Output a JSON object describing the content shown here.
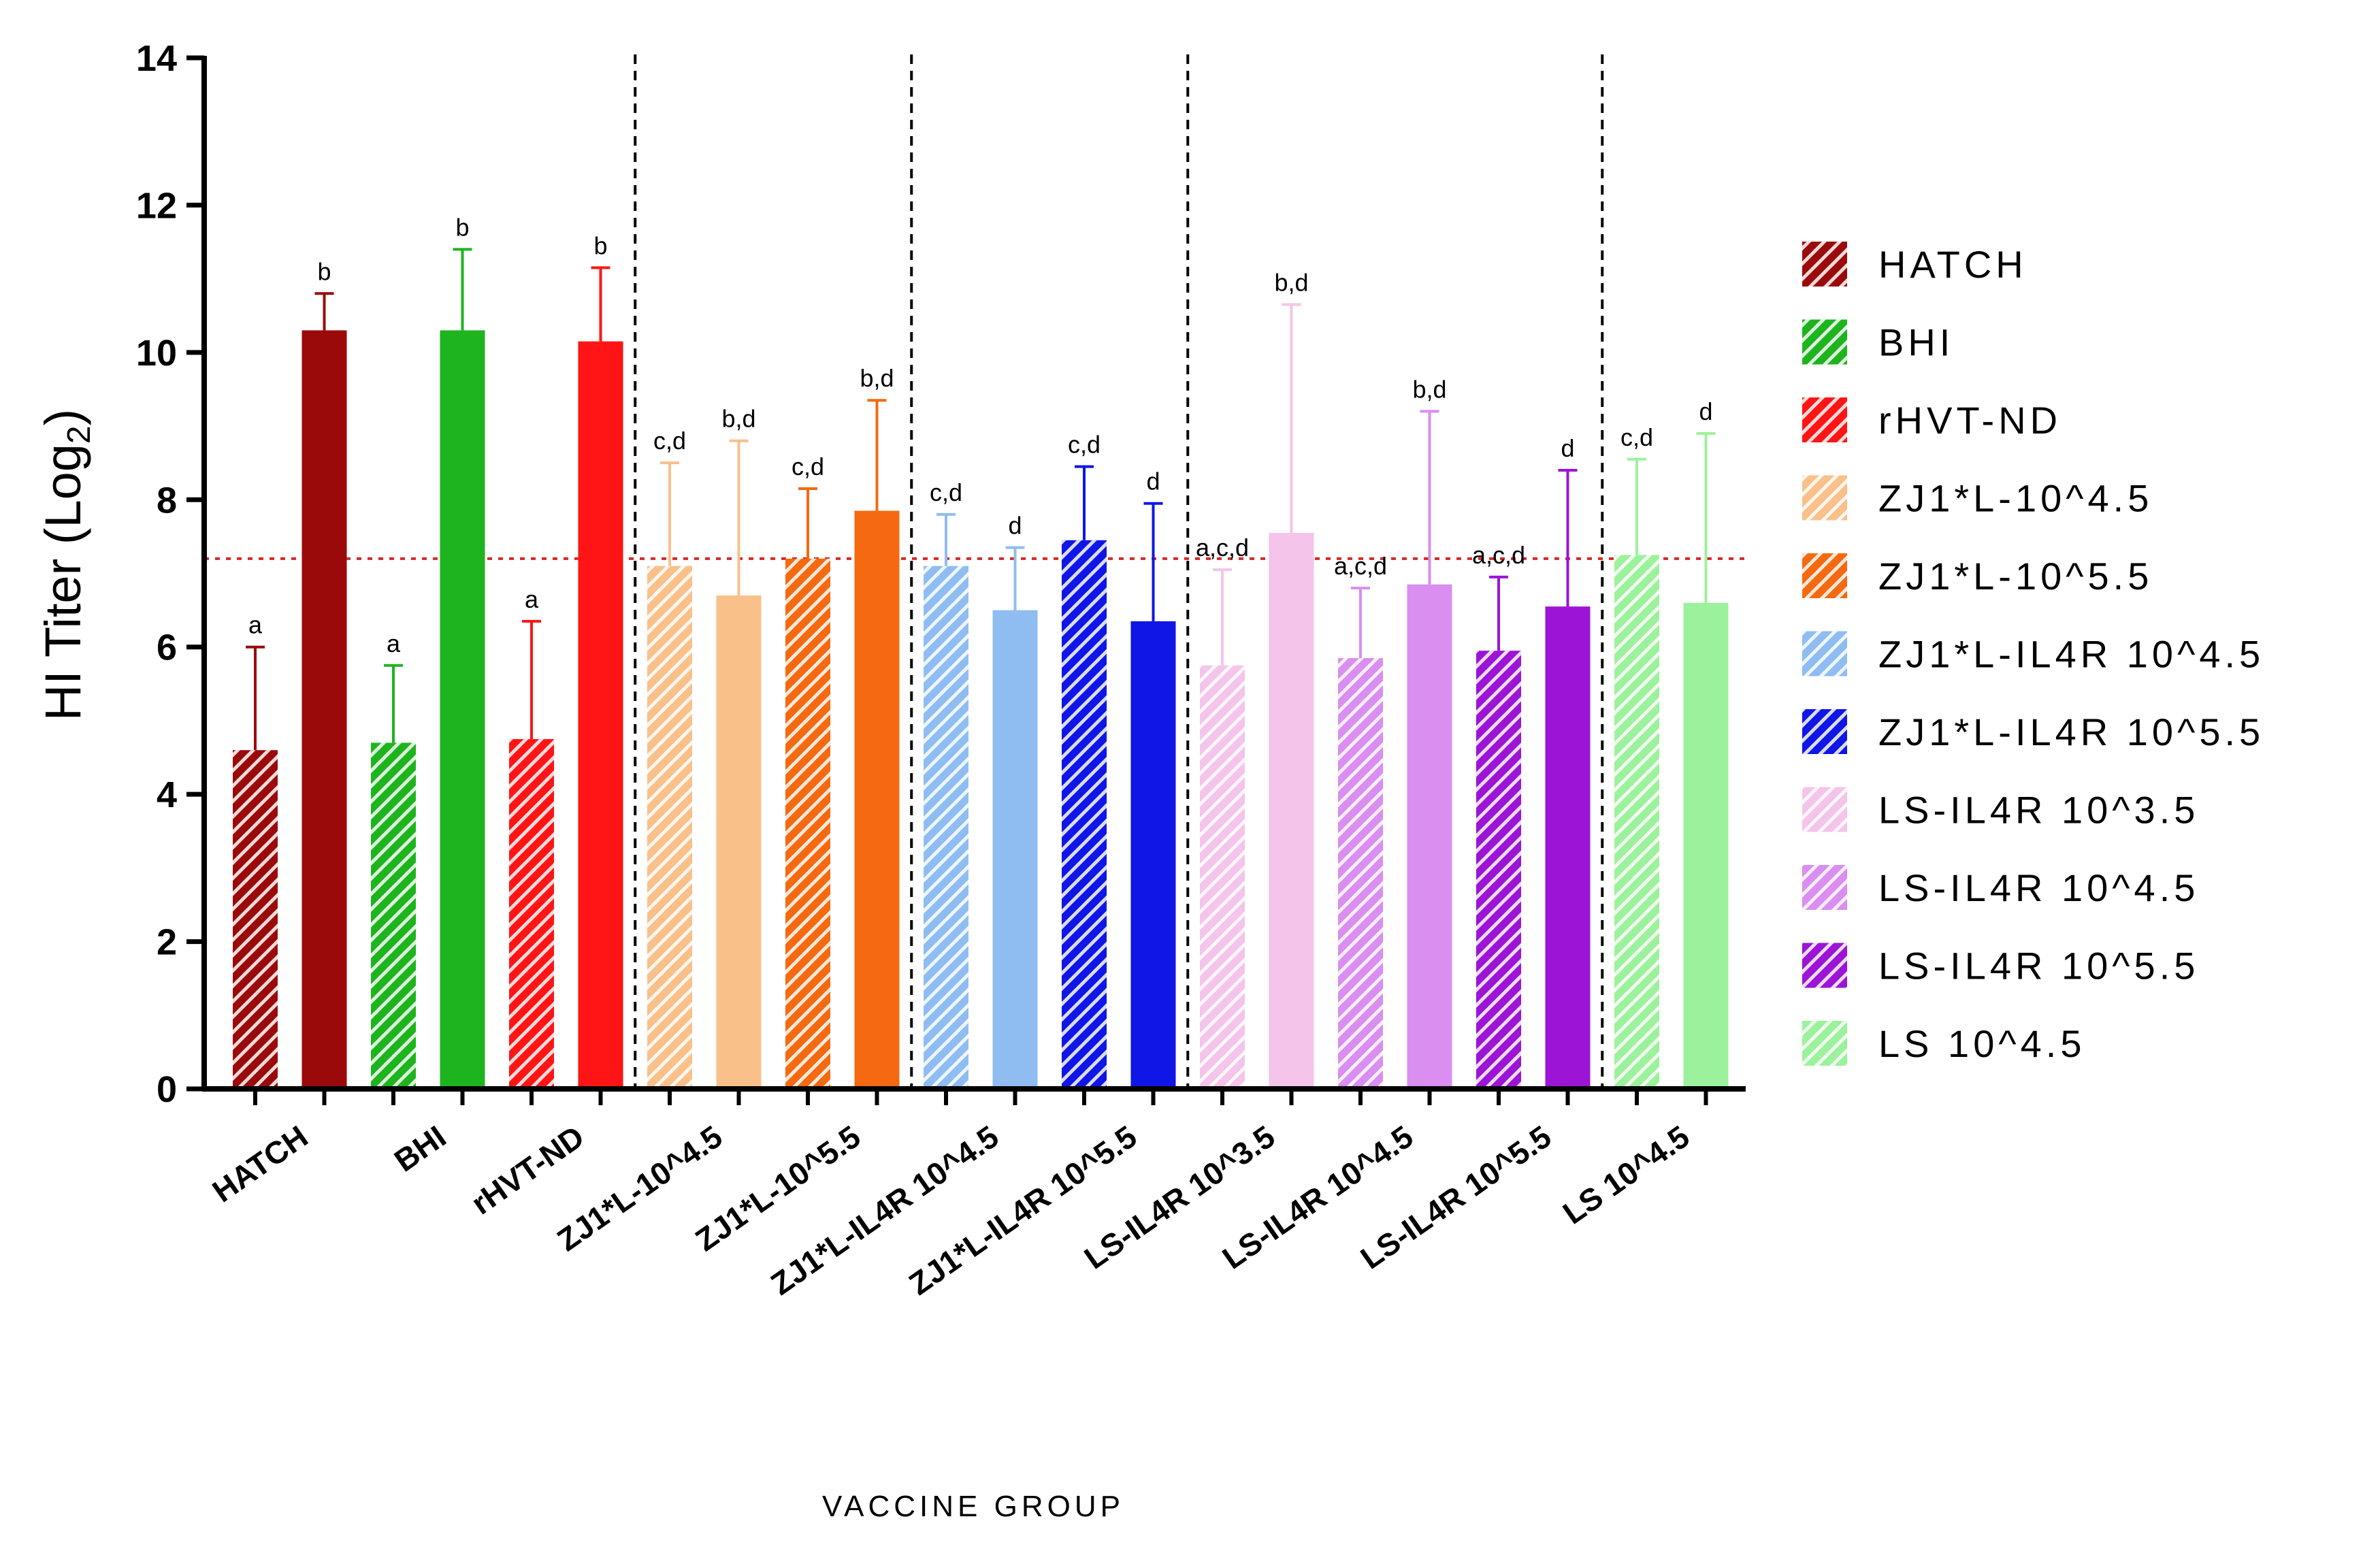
{
  "chart_data": {
    "type": "bar",
    "title": "",
    "xlabel": "VACCINE GROUP",
    "ylabel_main": "HI Titer (Log",
    "ylabel_sub": "2",
    "ylabel_close": ")",
    "ylim": [
      0,
      14
    ],
    "yticks": [
      0,
      2,
      4,
      6,
      8,
      10,
      12,
      14
    ],
    "reference_line": 7.2,
    "category_labels": [
      "HATCH",
      "BHI",
      "rHVT-ND",
      "ZJ1*L-10^4.5",
      "ZJ1*L-10^5.5",
      "ZJ1*L-IL4R 10^4.5",
      "ZJ1*L-IL4R 10^5.5",
      "LS-IL4R 10^3.5",
      "LS-IL4R 10^4.5",
      "LS-IL4R 10^5.5",
      "LS 10^4.5"
    ],
    "group_separators_after_bar": [
      5,
      9,
      13,
      19
    ],
    "legend_position": "right",
    "series": [
      {
        "name": "HATCH",
        "color": "#9b0a0a",
        "bars": [
          {
            "value": 4.6,
            "err": 1.4,
            "sig": "a",
            "hatched": true
          },
          {
            "value": 10.3,
            "err": 0.5,
            "sig": "b",
            "hatched": false
          }
        ]
      },
      {
        "name": "BHI",
        "color": "#1eb41e",
        "bars": [
          {
            "value": 4.7,
            "err": 1.05,
            "sig": "a",
            "hatched": true
          },
          {
            "value": 10.3,
            "err": 1.1,
            "sig": "b",
            "hatched": false
          }
        ]
      },
      {
        "name": "rHVT-ND",
        "color": "#ff1515",
        "bars": [
          {
            "value": 4.75,
            "err": 1.6,
            "sig": "a",
            "hatched": true
          },
          {
            "value": 10.15,
            "err": 1.0,
            "sig": "b",
            "hatched": false
          }
        ]
      },
      {
        "name": "ZJ1*L-10^4.5",
        "color": "#f9c08a",
        "bars": [
          {
            "value": 7.1,
            "err": 1.4,
            "sig": "c,d",
            "hatched": true
          },
          {
            "value": 6.7,
            "err": 2.1,
            "sig": "b,d",
            "hatched": false
          }
        ]
      },
      {
        "name": "ZJ1*L-10^5.5",
        "color": "#f56a10",
        "bars": [
          {
            "value": 7.2,
            "err": 0.95,
            "sig": "c,d",
            "hatched": true
          },
          {
            "value": 7.85,
            "err": 1.5,
            "sig": "b,d",
            "hatched": false
          }
        ]
      },
      {
        "name": "ZJ1*L-IL4R 10^4.5",
        "color": "#8fbdf2",
        "bars": [
          {
            "value": 7.1,
            "err": 0.7,
            "sig": "c,d",
            "hatched": true
          },
          {
            "value": 6.5,
            "err": 0.85,
            "sig": "d",
            "hatched": false
          }
        ]
      },
      {
        "name": "ZJ1*L-IL4R 10^5.5",
        "color": "#0f16e6",
        "bars": [
          {
            "value": 7.45,
            "err": 1.0,
            "sig": "c,d",
            "hatched": true
          },
          {
            "value": 6.35,
            "err": 1.6,
            "sig": "d",
            "hatched": false
          }
        ]
      },
      {
        "name": "LS-IL4R 10^3.5",
        "color": "#f4c4ea",
        "bars": [
          {
            "value": 5.75,
            "err": 1.3,
            "sig": "a,c,d",
            "hatched": true
          },
          {
            "value": 7.55,
            "err": 3.1,
            "sig": "b,d",
            "hatched": false
          }
        ]
      },
      {
        "name": "LS-IL4R 10^4.5",
        "color": "#d98ef0",
        "bars": [
          {
            "value": 5.85,
            "err": 0.95,
            "sig": "a,c,d",
            "hatched": true
          },
          {
            "value": 6.85,
            "err": 2.35,
            "sig": "b,d",
            "hatched": false
          }
        ]
      },
      {
        "name": "LS-IL4R 10^5.5",
        "color": "#9c14d6",
        "bars": [
          {
            "value": 5.95,
            "err": 1.0,
            "sig": "a,c,d",
            "hatched": true
          },
          {
            "value": 6.55,
            "err": 1.85,
            "sig": "d",
            "hatched": false
          }
        ]
      },
      {
        "name": "LS 10^4.5",
        "color": "#9cf29c",
        "bars": [
          {
            "value": 7.25,
            "err": 1.3,
            "sig": "c,d",
            "hatched": true
          },
          {
            "value": 6.6,
            "err": 2.3,
            "sig": "d",
            "hatched": false
          }
        ]
      }
    ]
  }
}
